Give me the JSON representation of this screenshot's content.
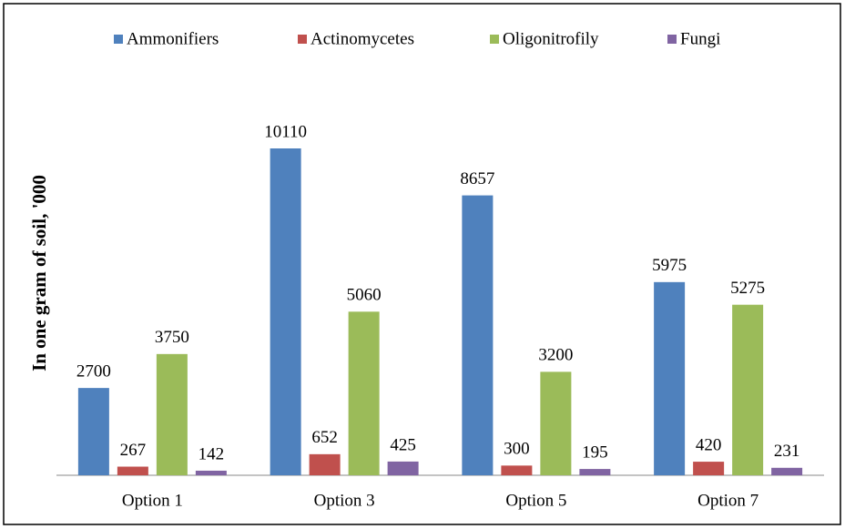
{
  "chart_data": {
    "type": "bar",
    "y_label": "In one gram of soil, '000",
    "categories": [
      "Option 1",
      "Option 3",
      "Option 5",
      "Option 7"
    ],
    "series": [
      {
        "name": "Ammonifiers",
        "color": "#4f81bd",
        "values": [
          2700,
          10110,
          8657,
          5975
        ]
      },
      {
        "name": "Actinomycetes",
        "color": "#c0504d",
        "values": [
          267,
          652,
          300,
          420
        ]
      },
      {
        "name": "Oligonitrofily",
        "color": "#9bbb59",
        "values": [
          3750,
          5060,
          3200,
          5275
        ]
      },
      {
        "name": "Fungi",
        "color": "#8064a2",
        "values": [
          142,
          425,
          195,
          231
        ]
      }
    ],
    "legend": "top"
  }
}
